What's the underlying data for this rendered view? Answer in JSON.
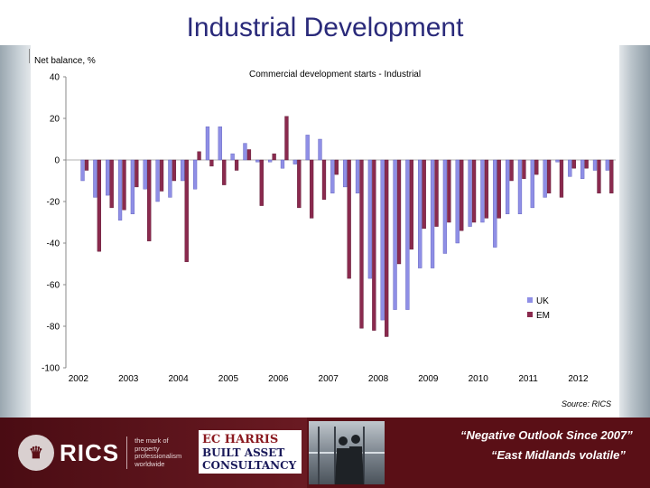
{
  "slide": {
    "title": "Industrial Development",
    "footer_quote_1": "“Negative Outlook Since 2007”",
    "footer_quote_2": "“East Midlands volatile”"
  },
  "logos": {
    "rics_word": "RICS",
    "rics_tagline": "the mark of property professionalism worldwide",
    "ec_harris_line1": "EC HARRIS",
    "ec_harris_line2": "BUILT ASSET",
    "ec_harris_line3": "CONSULTANCY"
  },
  "colors": {
    "uk": "#8f8fe6",
    "em": "#8a2a4e",
    "footer_bg": "#5a0f16",
    "title": "#2a2a7a"
  },
  "chart_data": {
    "type": "bar",
    "title": "Commercial development starts - Industrial",
    "ylabel": "Net balance, %",
    "source": "Source: RICS",
    "ylim": [
      -100,
      40
    ],
    "yticks": [
      40,
      20,
      0,
      -20,
      -40,
      -60,
      -80,
      -100
    ],
    "year_labels": [
      "2002",
      "2003",
      "2004",
      "2005",
      "2006",
      "2007",
      "2008",
      "2009",
      "2010",
      "2011",
      "2012"
    ],
    "legend_position": "right",
    "grid": false,
    "categories": [
      "2002 Q1",
      "2002 Q2",
      "2002 Q3",
      "2002 Q4",
      "2003 Q1",
      "2003 Q2",
      "2003 Q3",
      "2003 Q4",
      "2004 Q1",
      "2004 Q2",
      "2004 Q3",
      "2004 Q4",
      "2005 Q1",
      "2005 Q2",
      "2005 Q3",
      "2005 Q4",
      "2006 Q1",
      "2006 Q2",
      "2006 Q3",
      "2006 Q4",
      "2007 Q1",
      "2007 Q2",
      "2007 Q3",
      "2007 Q4",
      "2008 Q1",
      "2008 Q2",
      "2008 Q3",
      "2008 Q4",
      "2009 Q1",
      "2009 Q2",
      "2009 Q3",
      "2009 Q4",
      "2010 Q1",
      "2010 Q2",
      "2010 Q3",
      "2010 Q4",
      "2011 Q1",
      "2011 Q2",
      "2011 Q3",
      "2011 Q4",
      "2012 Q1",
      "2012 Q2",
      "2012 Q3",
      "2012 Q4"
    ],
    "series": [
      {
        "name": "UK",
        "values": [
          null,
          -10,
          -18,
          -17,
          -29,
          -26,
          -14,
          -20,
          -18,
          -10,
          -14,
          16,
          16,
          3,
          8,
          -1,
          -1,
          -4,
          -2,
          12,
          10,
          -16,
          -13,
          -16,
          -57,
          -77,
          -72,
          -72,
          -52,
          -52,
          -45,
          -40,
          -32,
          -30,
          -42,
          -26,
          -26,
          -23,
          -18,
          -1,
          -8,
          -9,
          -5,
          -5
        ]
      },
      {
        "name": "EM",
        "values": [
          null,
          -5,
          -44,
          -23,
          -24,
          -13,
          -39,
          -15,
          -10,
          -49,
          4,
          -3,
          -12,
          -5,
          5,
          -22,
          3,
          21,
          -23,
          -28,
          -19,
          -7,
          -57,
          -81,
          -82,
          -85,
          -50,
          -43,
          -33,
          -32,
          -30,
          -34,
          -30,
          -28,
          -28,
          -10,
          -9,
          -7,
          -16,
          -18,
          -4,
          -4,
          -16,
          -16
        ]
      }
    ],
    "legend": [
      "UK",
      "EM"
    ]
  }
}
